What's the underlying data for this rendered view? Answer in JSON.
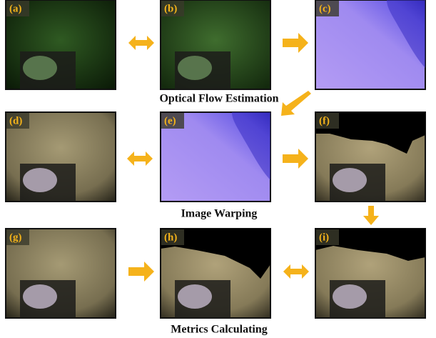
{
  "panels": [
    "(a)",
    "(b)",
    "(c)",
    "(d)",
    "(e)",
    "(f)",
    "(g)",
    "(h)",
    "(i)"
  ],
  "captions": [
    "Optical Flow Estimation",
    "Image Warping",
    "Metrics Calculating"
  ]
}
